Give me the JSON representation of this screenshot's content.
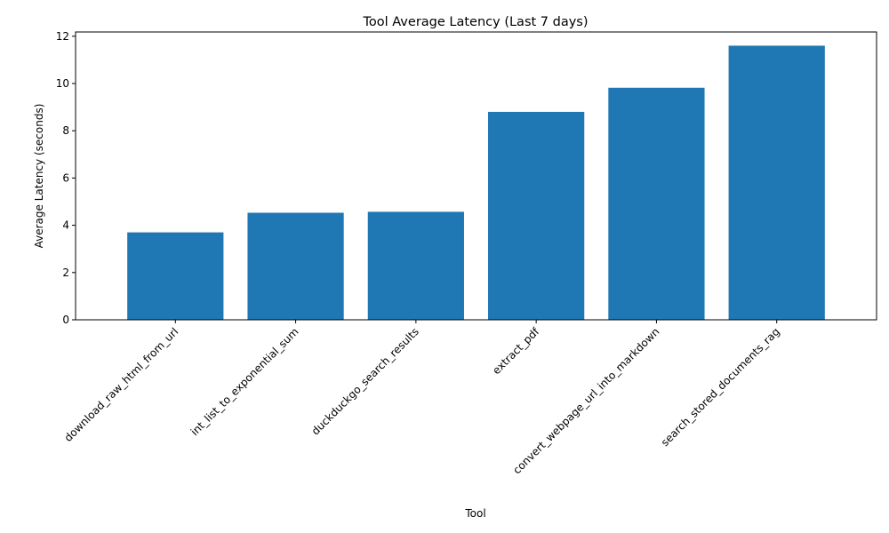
{
  "chart_data": {
    "type": "bar",
    "title": "Tool Average Latency (Last 7 days)",
    "xlabel": "Tool",
    "ylabel": "Average Latency (seconds)",
    "categories": [
      "download_raw_html_from_url",
      "int_list_to_exponential_sum",
      "duckduckgo_search_results",
      "extract_pdf",
      "convert_webpage_url_into_markdown",
      "search_stored_documents_rag"
    ],
    "values": [
      3.7,
      4.53,
      4.57,
      8.8,
      9.82,
      11.6
    ],
    "ylim": [
      0,
      12.18
    ],
    "yticks": [
      0,
      2,
      4,
      6,
      8,
      10,
      12
    ],
    "bar_color": "#1f77b4",
    "grid": false,
    "legend": "none"
  }
}
